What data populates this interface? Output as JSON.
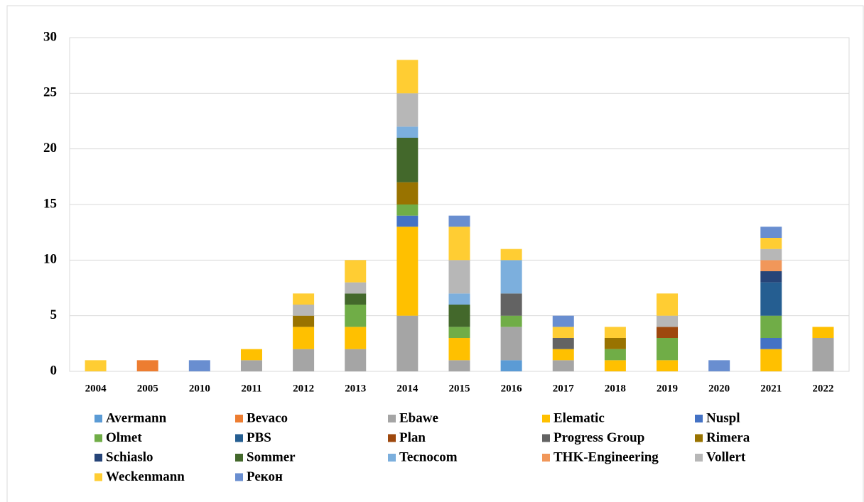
{
  "chart_data": {
    "type": "stacked_bar",
    "categories": [
      "2004",
      "2005",
      "2010",
      "2011",
      "2012",
      "2013",
      "2014",
      "2015",
      "2016",
      "2017",
      "2018",
      "2019",
      "2020",
      "2021",
      "2022"
    ],
    "series": [
      {
        "name": "Avermann",
        "color": "#5b9bd5",
        "values": [
          0,
          0,
          0,
          0,
          0,
          0,
          0,
          0,
          1,
          0,
          0,
          0,
          0,
          0,
          0
        ]
      },
      {
        "name": "Bevaco",
        "color": "#ed7d31",
        "values": [
          0,
          1,
          0,
          0,
          0,
          0,
          0,
          0,
          0,
          0,
          0,
          0,
          0,
          0,
          0
        ]
      },
      {
        "name": "Ebawe",
        "color": "#a5a5a5",
        "values": [
          0,
          0,
          0,
          1,
          2,
          2,
          5,
          1,
          3,
          1,
          0,
          0,
          0,
          0,
          3
        ]
      },
      {
        "name": "Elematic",
        "color": "#ffc000",
        "values": [
          0,
          0,
          0,
          1,
          2,
          2,
          8,
          2,
          0,
          1,
          1,
          1,
          0,
          2,
          1
        ]
      },
      {
        "name": "Nuspl",
        "color": "#4472c4",
        "values": [
          0,
          0,
          0,
          0,
          0,
          0,
          1,
          0,
          0,
          0,
          0,
          0,
          0,
          1,
          0
        ]
      },
      {
        "name": "Olmet",
        "color": "#70ad47",
        "values": [
          0,
          0,
          0,
          0,
          0,
          2,
          1,
          1,
          1,
          0,
          1,
          2,
          0,
          2,
          0
        ]
      },
      {
        "name": "PBS",
        "color": "#255e91",
        "values": [
          0,
          0,
          0,
          0,
          0,
          0,
          0,
          0,
          0,
          0,
          0,
          0,
          0,
          3,
          0
        ]
      },
      {
        "name": "Plan",
        "color": "#9e480e",
        "values": [
          0,
          0,
          0,
          0,
          0,
          0,
          0,
          0,
          0,
          0,
          0,
          1,
          0,
          0,
          0
        ]
      },
      {
        "name": "Progress Group",
        "color": "#636363",
        "values": [
          0,
          0,
          0,
          0,
          0,
          0,
          0,
          0,
          2,
          1,
          0,
          0,
          0,
          0,
          0
        ]
      },
      {
        "name": "Rimera",
        "color": "#997300",
        "values": [
          0,
          0,
          0,
          0,
          1,
          0,
          2,
          0,
          0,
          0,
          1,
          0,
          0,
          0,
          0
        ]
      },
      {
        "name": "Schiaslo",
        "color": "#264478",
        "values": [
          0,
          0,
          0,
          0,
          0,
          0,
          0,
          0,
          0,
          0,
          0,
          0,
          0,
          1,
          0
        ]
      },
      {
        "name": "Sommer",
        "color": "#43682b",
        "values": [
          0,
          0,
          0,
          0,
          0,
          1,
          4,
          2,
          0,
          0,
          0,
          0,
          0,
          0,
          0
        ]
      },
      {
        "name": "Tecnocom",
        "color": "#7cafdd",
        "values": [
          0,
          0,
          0,
          0,
          0,
          0,
          1,
          1,
          3,
          0,
          0,
          0,
          0,
          0,
          0
        ]
      },
      {
        "name": "THK-Engineering",
        "color": "#f1975a",
        "values": [
          0,
          0,
          0,
          0,
          0,
          0,
          0,
          0,
          0,
          0,
          0,
          0,
          0,
          1,
          0
        ]
      },
      {
        "name": "Vollert",
        "color": "#b7b7b7",
        "values": [
          0,
          0,
          0,
          0,
          1,
          1,
          3,
          3,
          0,
          0,
          0,
          1,
          0,
          1,
          0
        ]
      },
      {
        "name": "Weckenmann",
        "color": "#ffcd33",
        "values": [
          1,
          0,
          0,
          0,
          1,
          2,
          3,
          3,
          1,
          1,
          1,
          2,
          0,
          1,
          0
        ]
      },
      {
        "name": "Рекон",
        "color": "#698ed0",
        "values": [
          0,
          0,
          1,
          0,
          0,
          0,
          0,
          1,
          0,
          1,
          0,
          0,
          1,
          1,
          0
        ]
      }
    ],
    "ylim": [
      0,
      30
    ],
    "yticks": [
      0,
      5,
      10,
      15,
      20,
      25,
      30
    ],
    "grid": true,
    "legend": "bottom"
  }
}
